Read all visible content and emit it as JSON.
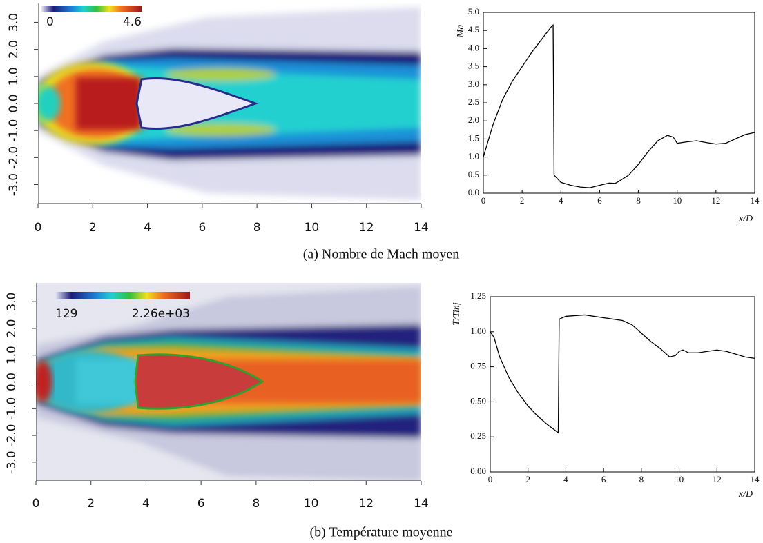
{
  "chart_data": [
    {
      "type": "contour",
      "xlim": [
        0,
        14
      ],
      "ylim": [
        -3.7,
        3.7
      ],
      "xticks": [
        0,
        2,
        4,
        6,
        8,
        10,
        12,
        14
      ],
      "yticks": [
        {
          "value": -3.0,
          "label": "-3.0"
        },
        {
          "value": -2.0,
          "label": "-2.0"
        },
        {
          "value": -1.0,
          "label": "-1.0"
        },
        {
          "value": 0,
          "label": "0.0"
        },
        {
          "value": 1.0,
          "label": "1.0"
        },
        {
          "value": 2.0,
          "label": "2.0"
        },
        {
          "value": 3.0,
          "label": "3.0"
        }
      ],
      "colorbar_ticks": [
        0,
        4.6
      ]
    },
    {
      "type": "line",
      "ylabel": "Ma",
      "xlabel": "x/D",
      "color": "#000000",
      "xlim": [
        0,
        14
      ],
      "ylim": [
        0,
        5
      ],
      "xticks": [
        0,
        2,
        4,
        6,
        8,
        10,
        12,
        14
      ],
      "yticks": [
        {
          "value": 0,
          "label": "0.0"
        },
        0.5,
        {
          "value": 1,
          "label": "1.0"
        },
        1.5,
        {
          "value": 2,
          "label": "2.0"
        },
        2.5,
        {
          "value": 3,
          "label": "3.0"
        },
        3.5,
        {
          "value": 4,
          "label": "4.0"
        },
        4.5,
        {
          "value": 5,
          "label": "5.0"
        }
      ],
      "x": [
        0,
        0.5,
        1,
        1.5,
        2,
        2.5,
        3,
        3.5,
        3.6,
        3.65,
        4,
        4.5,
        5,
        5.5,
        6,
        6.5,
        6.8,
        7,
        7.5,
        8,
        8.5,
        9,
        9.5,
        9.8,
        10,
        10.5,
        11,
        11.5,
        12,
        12.5,
        13,
        13.5,
        14
      ],
      "values": [
        1.0,
        1.9,
        2.6,
        3.1,
        3.5,
        3.9,
        4.25,
        4.6,
        4.65,
        0.5,
        0.3,
        0.22,
        0.17,
        0.15,
        0.22,
        0.28,
        0.27,
        0.33,
        0.5,
        0.8,
        1.15,
        1.45,
        1.6,
        1.55,
        1.38,
        1.42,
        1.45,
        1.4,
        1.36,
        1.38,
        1.5,
        1.62,
        1.68
      ]
    },
    {
      "type": "contour",
      "xlim": [
        0,
        14
      ],
      "ylim": [
        -3.7,
        3.7
      ],
      "xticks": [
        0,
        2,
        4,
        6,
        8,
        10,
        12,
        14
      ],
      "yticks": [
        {
          "value": -3.0,
          "label": "-3.0"
        },
        {
          "value": -2.0,
          "label": "-2.0"
        },
        {
          "value": -1.0,
          "label": "-1.0"
        },
        {
          "value": 0,
          "label": "0.0"
        },
        {
          "value": 1.0,
          "label": "1.0"
        },
        {
          "value": 2.0,
          "label": "2.0"
        },
        {
          "value": 3.0,
          "label": "3.0"
        }
      ],
      "colorbar_ticks": [
        129,
        {
          "value": 2260,
          "label": "2.26e+03"
        }
      ]
    },
    {
      "type": "line",
      "ylabel": "T̄/Tinj",
      "xlabel": "x/D",
      "color": "#000000",
      "xlim": [
        0,
        14
      ],
      "ylim": [
        0,
        1.25
      ],
      "xticks": [
        0,
        2,
        4,
        6,
        8,
        10,
        12,
        14
      ],
      "yticks": [
        {
          "value": 0,
          "label": "0.00"
        },
        0.25,
        {
          "value": 0.5,
          "label": "0.50"
        },
        0.75,
        {
          "value": 1,
          "label": "1.00"
        },
        1.25
      ],
      "x": [
        0,
        0.2,
        0.5,
        1,
        1.5,
        2,
        2.5,
        3,
        3.5,
        3.6,
        3.65,
        4,
        5,
        6,
        7,
        7.5,
        8,
        8.5,
        9,
        9.5,
        9.8,
        10,
        10.2,
        10.5,
        11,
        12,
        12.5,
        13,
        13.5,
        14
      ],
      "values": [
        1.0,
        0.96,
        0.82,
        0.67,
        0.56,
        0.47,
        0.4,
        0.34,
        0.29,
        0.28,
        1.09,
        1.11,
        1.12,
        1.1,
        1.08,
        1.05,
        0.99,
        0.93,
        0.88,
        0.82,
        0.83,
        0.86,
        0.87,
        0.85,
        0.85,
        0.87,
        0.86,
        0.84,
        0.82,
        0.81
      ]
    }
  ],
  "captions": [
    "(a) Nombre de Mach moyen",
    "(b) Température moyenne"
  ]
}
